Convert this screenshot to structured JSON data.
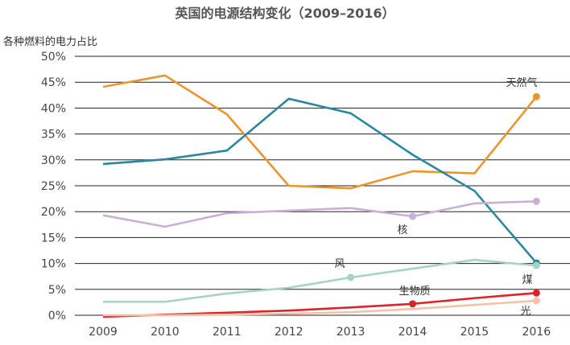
{
  "chart_data": {
    "type": "line",
    "title": "英国的电源结构变化（2009–2016）",
    "ylabel": "各种燃料的电力占比",
    "xlabel": "",
    "categories": [
      "2009",
      "2010",
      "2011",
      "2012",
      "2013",
      "2014",
      "2015",
      "2016"
    ],
    "ylim": [
      0,
      50
    ],
    "yticks": [
      "0%",
      "5%",
      "10%",
      "15%",
      "20%",
      "25%",
      "30%",
      "35%",
      "40%",
      "45%",
      "50%"
    ],
    "grid": true,
    "series": [
      {
        "name": "天然气",
        "color": "#e8962e",
        "values": [
          44.1,
          46.3,
          38.8,
          25.0,
          24.5,
          27.8,
          27.4,
          42.2
        ],
        "markers": [
          7
        ]
      },
      {
        "name": "煤",
        "color": "#2a87a0",
        "values": [
          29.2,
          30.1,
          31.8,
          41.8,
          39.0,
          31.0,
          24.0,
          10.1
        ],
        "markers": [
          7
        ]
      },
      {
        "name": "核",
        "color": "#c9b0d3",
        "values": [
          19.3,
          17.1,
          19.7,
          20.2,
          20.7,
          19.1,
          21.6,
          22.0
        ],
        "markers": [
          5,
          7
        ]
      },
      {
        "name": "风",
        "color": "#a8d3c4",
        "values": [
          2.6,
          2.6,
          4.2,
          5.3,
          7.3,
          9.0,
          10.7,
          9.6
        ],
        "markers": [
          4,
          7
        ]
      },
      {
        "name": "生物质",
        "color": "#d9262a",
        "values": [
          -0.3,
          0.1,
          0.5,
          0.9,
          1.5,
          2.2,
          3.3,
          4.3
        ],
        "markers": [
          5,
          7
        ]
      },
      {
        "name": "光",
        "color": "#f6c0a8",
        "values": [
          0.0,
          0.0,
          0.1,
          0.3,
          0.6,
          1.2,
          2.0,
          2.8
        ],
        "markers": [
          7
        ]
      }
    ]
  }
}
